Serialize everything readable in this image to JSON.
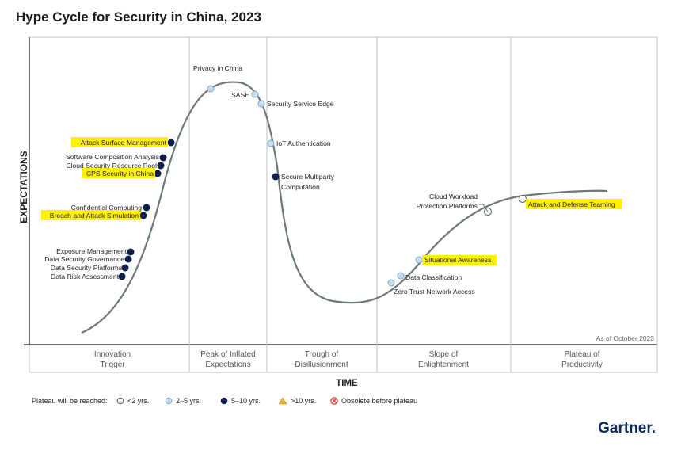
{
  "chart_data": {
    "type": "line",
    "title": "Hype Cycle for Security in China, 2023",
    "xlabel": "TIME",
    "ylabel": "EXPECTATIONS",
    "as_of": "As of October 2023",
    "phases": [
      {
        "line1": "Innovation",
        "line2": "Trigger"
      },
      {
        "line1": "Peak of Inflated",
        "line2": "Expectations"
      },
      {
        "line1": "Trough of",
        "line2": "Disillusionment"
      },
      {
        "line1": "Slope of",
        "line2": "Enlightenment"
      },
      {
        "line1": "Plateau of",
        "line2": "Productivity"
      }
    ],
    "legend": {
      "label": "Plateau will be reached:",
      "items": [
        {
          "key": "lt2",
          "text": "<2 yrs."
        },
        {
          "key": "2to5",
          "text": "2–5 yrs."
        },
        {
          "key": "5to10",
          "text": "5–10 yrs."
        },
        {
          "key": "gt10",
          "text": ">10 yrs."
        },
        {
          "key": "obsolete",
          "text": "Obsolete before plateau"
        }
      ]
    },
    "colors": {
      "lt2": "#ffffff",
      "2to5": "#c9dff0",
      "5to10": "#0d1f4a",
      "gt10": "#f2b531",
      "obsolete": "#d9342b",
      "curve": "#6f7777",
      "highlight": "#fff200"
    },
    "technologies": [
      {
        "name": "Data Risk Assessment",
        "position": 0.079,
        "plateau": "5to10",
        "highlight": false
      },
      {
        "name": "Data Security Platforms",
        "position": 0.082,
        "plateau": "5to10",
        "highlight": false
      },
      {
        "name": "Data Security Governance",
        "position": 0.085,
        "plateau": "5to10",
        "highlight": false
      },
      {
        "name": "Exposure Management",
        "position": 0.089,
        "plateau": "5to10",
        "highlight": false
      },
      {
        "name": "Breach and Attack Simulation",
        "position": 0.108,
        "plateau": "5to10",
        "highlight": true
      },
      {
        "name": "Confidential Computing",
        "position": 0.112,
        "plateau": "5to10",
        "highlight": false
      },
      {
        "name": "CPS Security in China",
        "position": 0.125,
        "plateau": "5to10",
        "highlight": true
      },
      {
        "name": "Cloud Security Resource Pool",
        "position": 0.129,
        "plateau": "5to10",
        "highlight": false
      },
      {
        "name": "Software Composition Analysis",
        "position": 0.132,
        "plateau": "5to10",
        "highlight": false
      },
      {
        "name": "Attack Surface Management",
        "position": 0.142,
        "plateau": "5to10",
        "highlight": true
      },
      {
        "name": "Privacy in China",
        "position": 0.184,
        "plateau": "2to5",
        "highlight": false
      },
      {
        "name": "SASE",
        "position": 0.233,
        "plateau": "2to5",
        "highlight": false
      },
      {
        "name": "Security Service Edge",
        "position": 0.237,
        "plateau": "2to5",
        "highlight": false
      },
      {
        "name": "IoT Authentication",
        "position": 0.25,
        "plateau": "2to5",
        "highlight": false
      },
      {
        "name": "Secure Multiparty Computation",
        "position": 0.257,
        "plateau": "5to10",
        "highlight": false
      },
      {
        "name": "Zero Trust Network Access",
        "position": 0.5,
        "plateau": "2to5",
        "highlight": false
      },
      {
        "name": "Data Classification",
        "position": 0.512,
        "plateau": "2to5",
        "highlight": false
      },
      {
        "name": "Situational Awareness",
        "position": 0.55,
        "plateau": "2to5",
        "highlight": true
      },
      {
        "name": "Cloud Workload Protection Platforms",
        "position": 0.72,
        "plateau": "lt2",
        "highlight": false
      },
      {
        "name": "Attack and Defense Teaming",
        "position": 0.8,
        "plateau": "lt2",
        "highlight": true
      }
    ]
  },
  "brand": "Gartner."
}
